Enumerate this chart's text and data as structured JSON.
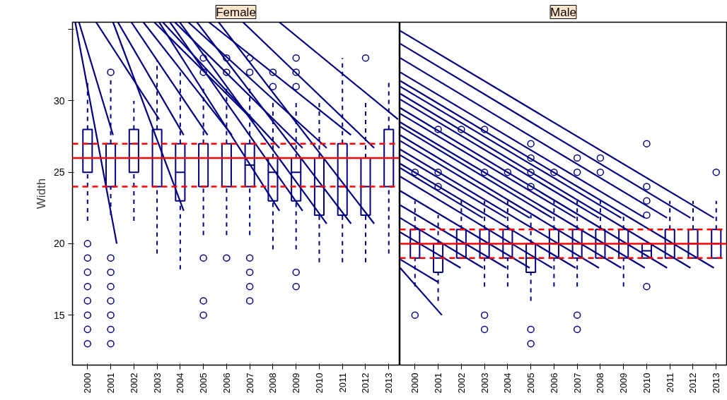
{
  "chart_data": [
    {
      "type": "box",
      "title": "Female",
      "ylabel": "Width",
      "color": "#000080",
      "x": [
        2000,
        2001,
        2002,
        2003,
        2004,
        2005,
        2006,
        2007,
        2008,
        2009,
        2010,
        2011,
        2012,
        2013
      ],
      "xlim": [
        1999.35,
        2013.45
      ],
      "xticks": [
        2000,
        2001,
        2002,
        2003,
        2004,
        2005,
        2006,
        2007,
        2008,
        2009,
        2010,
        2011,
        2012,
        2013
      ],
      "ylim": [
        11.5,
        35.5
      ],
      "yticks": [
        15,
        20,
        25,
        30,
        {
          "value": 35,
          "label": null
        }
      ],
      "tick_labels": "xy",
      "boxes": [
        {
          "low": 21.6,
          "q1": 25,
          "median": 27,
          "q3": 28,
          "high": 31.5,
          "outliers": [
            20,
            19,
            18,
            17,
            16,
            15,
            14,
            13
          ]
        },
        {
          "low": 22,
          "q1": 24,
          "median": 26,
          "q3": 27,
          "high": 31.5,
          "outliers": [
            32,
            19,
            18,
            17,
            16,
            15,
            14,
            13
          ]
        },
        {
          "low": 21.6,
          "q1": 25,
          "median": 27,
          "q3": 28,
          "high": 30
        },
        {
          "low": 19.3,
          "q1": 24,
          "median": 26,
          "q3": 28,
          "high": 32.8
        },
        {
          "low": 18.2,
          "q1": 23,
          "median": 25,
          "q3": 27,
          "high": 32
        },
        {
          "low": 20.6,
          "q1": 24,
          "median": 26,
          "q3": 27,
          "high": 31,
          "outliers": [
            33,
            32,
            19,
            16,
            15
          ]
        },
        {
          "low": 20.6,
          "q1": 24,
          "median": 26,
          "q3": 27,
          "high": 31,
          "outliers": [
            33,
            32,
            19
          ]
        },
        {
          "low": 20.6,
          "q1": 24,
          "median": 25.5,
          "q3": 27,
          "high": 31,
          "outliers": [
            33,
            32,
            19,
            18,
            17,
            16
          ]
        },
        {
          "low": 19.6,
          "q1": 23,
          "median": 25,
          "q3": 26,
          "high": 30,
          "outliers": [
            32,
            31
          ]
        },
        {
          "low": 19.6,
          "q1": 23,
          "median": 25,
          "q3": 26,
          "high": 30,
          "outliers": [
            33,
            32,
            31,
            18,
            17
          ]
        },
        {
          "low": 18.7,
          "q1": 22,
          "median": 24,
          "q3": 26,
          "high": 30
        },
        {
          "low": 18.7,
          "q1": 22,
          "median": 24,
          "q3": 27,
          "high": 33
        },
        {
          "low": 18.7,
          "q1": 22,
          "median": 24,
          "q3": 26,
          "high": 30,
          "outliers": [
            33
          ]
        },
        {
          "low": 19.3,
          "q1": 24,
          "median": 26,
          "q3": 28,
          "high": 31.5
        }
      ],
      "series": [
        {
          "type": "line",
          "color": "#000080",
          "x": [
            1999.47,
            2001.26
          ],
          "values": [
            35.5,
            20.0
          ]
        },
        {
          "type": "line",
          "color": "#000080",
          "x": [
            1999.63,
            2001.1
          ],
          "values": [
            35.5,
            27.6
          ]
        },
        {
          "type": "line",
          "color": "#000080",
          "x": [
            2000.37,
            2003.09
          ],
          "values": [
            35.5,
            28.7
          ]
        },
        {
          "type": "line",
          "color": "#000080",
          "x": [
            2001.1,
            2004.15
          ],
          "values": [
            35.5,
            22.3
          ]
        },
        {
          "type": "line",
          "color": "#000080",
          "x": [
            2001.31,
            2004.15
          ],
          "values": [
            35.5,
            27.6
          ]
        },
        {
          "type": "line",
          "color": "#000080",
          "x": [
            2001.89,
            2005.18
          ],
          "values": [
            35.5,
            27.6
          ]
        },
        {
          "type": "line",
          "color": "#000080",
          "x": [
            2002.41,
            2006.23
          ],
          "values": [
            35.5,
            27.6
          ]
        },
        {
          "type": "line",
          "color": "#000080",
          "x": [
            2002.88,
            2007.23
          ],
          "values": [
            35.5,
            28.5
          ]
        },
        {
          "type": "line",
          "color": "#000080",
          "x": [
            2003.09,
            2008.28
          ],
          "values": [
            35.5,
            22.3
          ]
        },
        {
          "type": "line",
          "color": "#000080",
          "x": [
            2003.25,
            2008.28
          ],
          "values": [
            35.5,
            26.7
          ]
        },
        {
          "type": "line",
          "color": "#000080",
          "x": [
            2003.56,
            2009.28
          ],
          "values": [
            35.5,
            22.3
          ]
        },
        {
          "type": "line",
          "color": "#000080",
          "x": [
            2003.77,
            2009.28
          ],
          "values": [
            35.5,
            26.7
          ]
        },
        {
          "type": "line",
          "color": "#000080",
          "x": [
            2003.98,
            2010.32
          ],
          "values": [
            35.5,
            21.4
          ]
        },
        {
          "type": "line",
          "color": "#000080",
          "x": [
            2004.35,
            2010.32
          ],
          "values": [
            35.5,
            26.7
          ]
        },
        {
          "type": "line",
          "color": "#000080",
          "x": [
            2004.72,
            2011.37
          ],
          "values": [
            35.5,
            21.4
          ]
        },
        {
          "type": "line",
          "color": "#000080",
          "x": [
            2005.24,
            2011.37
          ],
          "values": [
            35.5,
            27.6
          ]
        },
        {
          "type": "line",
          "color": "#000080",
          "x": [
            2005.66,
            2012.37
          ],
          "values": [
            35.5,
            21.4
          ]
        },
        {
          "type": "line",
          "color": "#000080",
          "x": [
            2006.71,
            2012.37
          ],
          "values": [
            35.5,
            26.7
          ]
        },
        {
          "type": "line",
          "color": "#000080",
          "x": [
            2008.28,
            2013.4
          ],
          "values": [
            35.5,
            28.7
          ]
        }
      ],
      "ref_lines": [
        {
          "axis": "y",
          "value": 26,
          "color": "#ff0000",
          "line_style": "solid"
        },
        {
          "axis": "y",
          "value": 27,
          "color": "#ff0000",
          "line_style": "dashed"
        },
        {
          "axis": "y",
          "value": 24,
          "color": "#ff0000",
          "line_style": "dashed"
        }
      ]
    },
    {
      "type": "box",
      "title": "Male",
      "color": "#000080",
      "x": [
        2000,
        2001,
        2002,
        2003,
        2004,
        2005,
        2006,
        2007,
        2008,
        2009,
        2010,
        2011,
        2012,
        2013
      ],
      "xlim": [
        1999.35,
        2013.45
      ],
      "xticks": [
        2000,
        2001,
        2002,
        2003,
        2004,
        2005,
        2006,
        2007,
        2008,
        2009,
        2010,
        2011,
        2012,
        2013
      ],
      "ylim": [
        11.5,
        35.5
      ],
      "tick_labels": "x",
      "boxes": [
        {
          "low": 17,
          "q1": 19,
          "median": 20,
          "q3": 21,
          "high": 23,
          "outliers": [
            25,
            15
          ]
        },
        {
          "low": 16,
          "q1": 18,
          "median": 19,
          "q3": 20,
          "high": 22,
          "outliers": [
            28,
            25,
            24
          ]
        },
        {
          "low": 19,
          "q1": 19,
          "median": 20,
          "q3": 21,
          "high": 23,
          "outliers": [
            28
          ]
        },
        {
          "low": 17,
          "q1": 19,
          "median": 20,
          "q3": 21,
          "high": 23,
          "outliers": [
            28,
            25,
            15,
            14
          ]
        },
        {
          "low": 17,
          "q1": 19,
          "median": 20,
          "q3": 21,
          "high": 23,
          "outliers": [
            25
          ]
        },
        {
          "low": 16,
          "q1": 18,
          "median": 19,
          "q3": 20,
          "high": 22,
          "outliers": [
            27,
            26,
            25,
            24,
            14,
            13
          ]
        },
        {
          "low": 17,
          "q1": 19,
          "median": 20,
          "q3": 21,
          "high": 23,
          "outliers": [
            25
          ]
        },
        {
          "low": 17,
          "q1": 19,
          "median": 20,
          "q3": 21,
          "high": 23,
          "outliers": [
            26,
            25,
            15,
            14
          ]
        },
        {
          "low": 19,
          "q1": 19,
          "median": 20,
          "q3": 21,
          "high": 23,
          "outliers": [
            26,
            25
          ]
        },
        {
          "low": 17,
          "q1": 19,
          "median": 20,
          "q3": 21,
          "high": 22
        },
        {
          "low": 19,
          "q1": 19,
          "median": 19.5,
          "q3": 20,
          "high": 20,
          "outliers": [
            27,
            24,
            23,
            22,
            17
          ]
        },
        {
          "low": 19,
          "q1": 19,
          "median": 20,
          "q3": 21,
          "high": 23
        },
        {
          "low": 19,
          "q1": 19,
          "median": 20,
          "q3": 21,
          "high": 23
        },
        {
          "low": 19,
          "q1": 19,
          "median": 20,
          "q3": 21,
          "high": 23,
          "outliers": [
            25
          ]
        }
      ],
      "series": [
        {
          "type": "line",
          "color": "#000080",
          "x": [
            1999.36,
            2012.9
          ],
          "values": [
            34.9,
            21.8
          ]
        },
        {
          "type": "line",
          "color": "#000080",
          "x": [
            1999.36,
            2011.89
          ],
          "values": [
            34.0,
            21.8
          ]
        },
        {
          "type": "line",
          "color": "#000080",
          "x": [
            1999.36,
            2010.88
          ],
          "values": [
            33.0,
            21.8
          ]
        },
        {
          "type": "line",
          "color": "#000080",
          "x": [
            1999.36,
            2009.92
          ],
          "values": [
            32.0,
            21.8
          ]
        },
        {
          "type": "line",
          "color": "#000080",
          "x": [
            1999.36,
            2008.9
          ],
          "values": [
            31.0,
            21.8
          ]
        },
        {
          "type": "line",
          "color": "#000080",
          "x": [
            1999.36,
            2007.94
          ],
          "values": [
            30.1,
            21.8
          ]
        },
        {
          "type": "line",
          "color": "#000080",
          "x": [
            1999.36,
            2006.93
          ],
          "values": [
            29.1,
            21.8
          ]
        },
        {
          "type": "line",
          "color": "#000080",
          "x": [
            1999.36,
            2005.92
          ],
          "values": [
            28.2,
            21.8
          ]
        },
        {
          "type": "line",
          "color": "#000080",
          "x": [
            1999.36,
            2004.95
          ],
          "values": [
            27.2,
            21.8
          ]
        },
        {
          "type": "line",
          "color": "#000080",
          "x": [
            1999.36,
            2003.94
          ],
          "values": [
            26.2,
            21.8
          ]
        },
        {
          "type": "line",
          "color": "#000080",
          "x": [
            1999.36,
            2002.93
          ],
          "values": [
            25.3,
            21.8
          ]
        },
        {
          "type": "line",
          "color": "#000080",
          "x": [
            1999.36,
            2012.9
          ],
          "values": [
            31.4,
            18.3
          ]
        },
        {
          "type": "line",
          "color": "#000080",
          "x": [
            1999.36,
            2011.89
          ],
          "values": [
            30.5,
            18.3
          ]
        },
        {
          "type": "line",
          "color": "#000080",
          "x": [
            1999.36,
            2010.88
          ],
          "values": [
            29.5,
            18.3
          ]
        },
        {
          "type": "line",
          "color": "#000080",
          "x": [
            1999.36,
            2009.92
          ],
          "values": [
            28.5,
            18.3
          ]
        },
        {
          "type": "line",
          "color": "#000080",
          "x": [
            1999.36,
            2008.9
          ],
          "values": [
            27.6,
            18.3
          ]
        },
        {
          "type": "line",
          "color": "#000080",
          "x": [
            1999.36,
            2007.94
          ],
          "values": [
            26.6,
            18.3
          ]
        },
        {
          "type": "line",
          "color": "#000080",
          "x": [
            1999.36,
            2006.93
          ],
          "values": [
            25.6,
            18.3
          ]
        },
        {
          "type": "line",
          "color": "#000080",
          "x": [
            1999.36,
            2005.92
          ],
          "values": [
            24.7,
            18.3
          ]
        },
        {
          "type": "line",
          "color": "#000080",
          "x": [
            1999.36,
            2004.95
          ],
          "values": [
            23.7,
            18.3
          ]
        },
        {
          "type": "line",
          "color": "#000080",
          "x": [
            1999.36,
            2003.94
          ],
          "values": [
            22.7,
            18.3
          ]
        },
        {
          "type": "line",
          "color": "#000080",
          "x": [
            1999.36,
            2002.93
          ],
          "values": [
            21.8,
            18.3
          ]
        },
        {
          "type": "line",
          "color": "#000080",
          "x": [
            1999.36,
            2001.97
          ],
          "values": [
            20.8,
            18.3
          ]
        },
        {
          "type": "line",
          "color": "#000080",
          "x": [
            1999.36,
            2001.0
          ],
          "values": [
            18.9,
            17.3
          ]
        },
        {
          "type": "line",
          "color": "#000080",
          "x": [
            1999.36,
            2001.16
          ],
          "values": [
            18.3,
            15.0
          ]
        }
      ],
      "ref_lines": [
        {
          "axis": "y",
          "value": 20,
          "color": "#ff0000",
          "line_style": "solid"
        },
        {
          "axis": "y",
          "value": 21,
          "color": "#ff0000",
          "line_style": "dashed"
        },
        {
          "axis": "y",
          "value": 19,
          "color": "#ff0000",
          "line_style": "dashed"
        }
      ]
    }
  ]
}
